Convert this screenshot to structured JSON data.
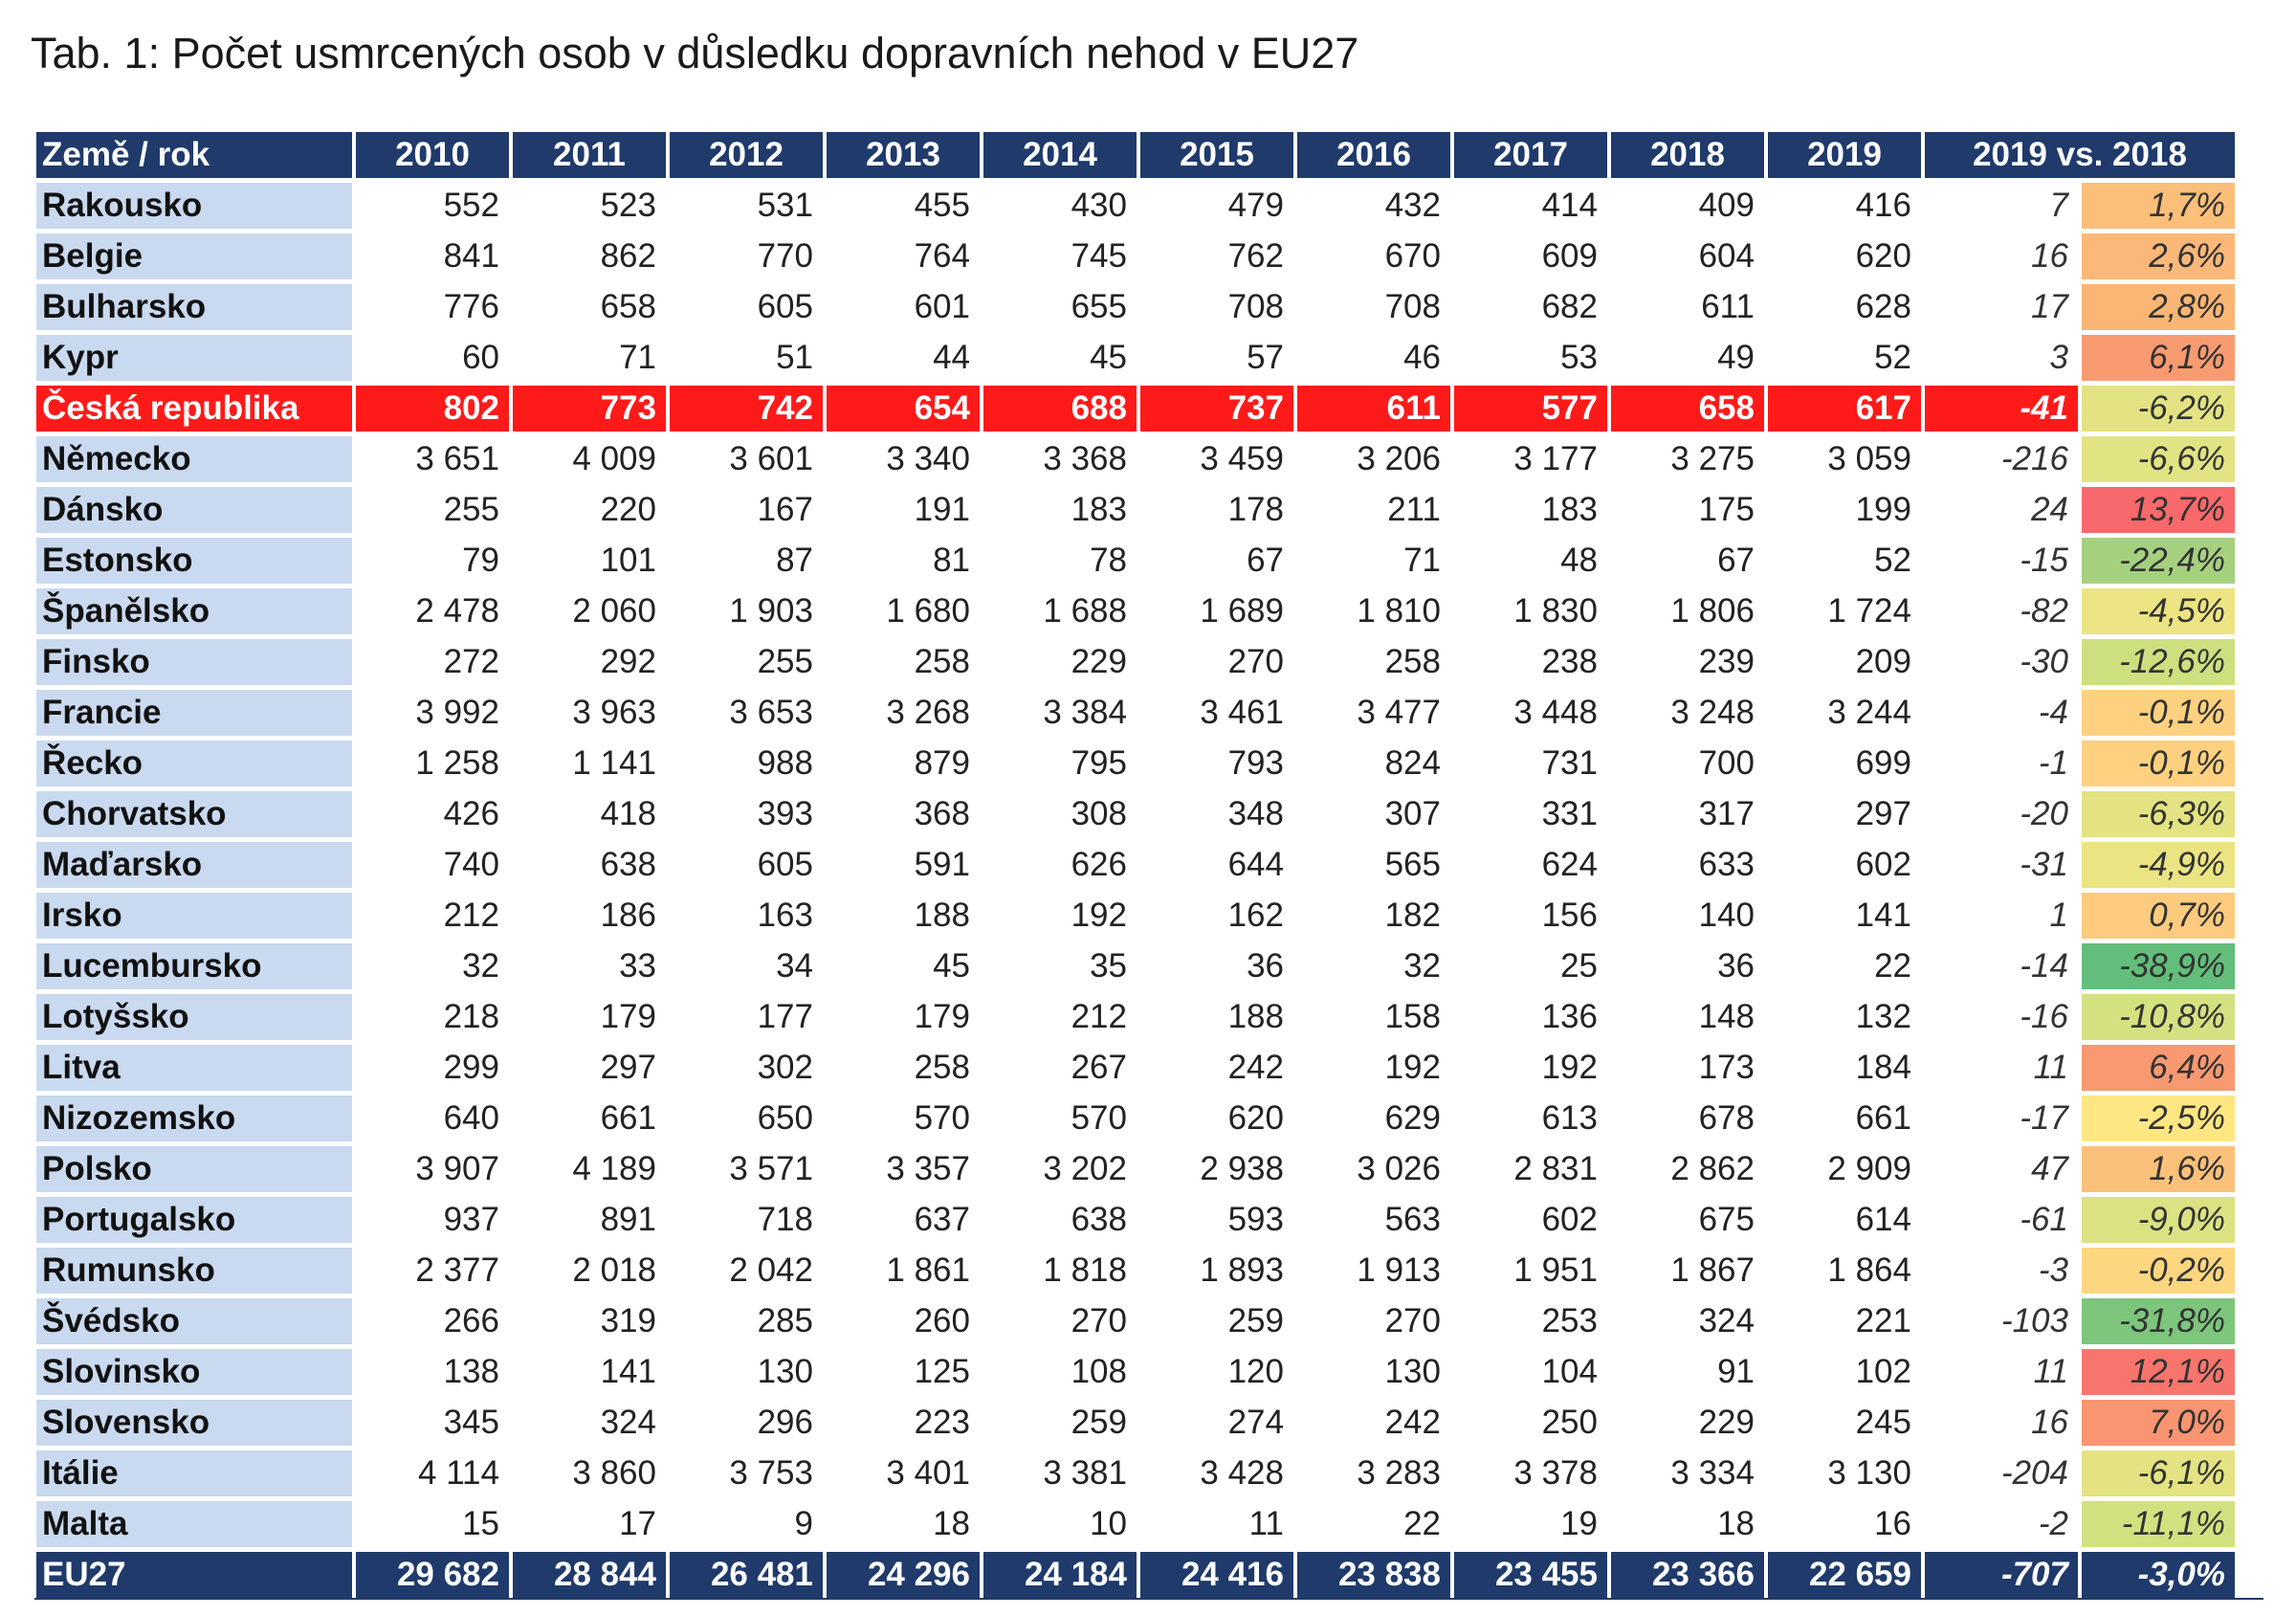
{
  "title": "Tab. 1: Počet usmrcených osob v důsledku dopravních nehod v EU27",
  "table": {
    "corner": "Země / rok",
    "years": [
      "2010",
      "2011",
      "2012",
      "2013",
      "2014",
      "2015",
      "2016",
      "2017",
      "2018",
      "2019"
    ],
    "diff_header": "2019 vs. 2018",
    "rows": [
      {
        "country": "Rakousko",
        "values": [
          "552",
          "523",
          "531",
          "455",
          "430",
          "479",
          "432",
          "414",
          "409",
          "416"
        ],
        "diff": "7",
        "pct": "1,7%",
        "color": "#fbbf7a"
      },
      {
        "country": "Belgie",
        "values": [
          "841",
          "862",
          "770",
          "764",
          "745",
          "762",
          "670",
          "609",
          "604",
          "620"
        ],
        "diff": "16",
        "pct": "2,6%",
        "color": "#fbb878"
      },
      {
        "country": "Bulharsko",
        "values": [
          "776",
          "658",
          "605",
          "601",
          "655",
          "708",
          "708",
          "682",
          "611",
          "628"
        ],
        "diff": "17",
        "pct": "2,8%",
        "color": "#fbb676"
      },
      {
        "country": "Kypr",
        "values": [
          "60",
          "71",
          "51",
          "44",
          "45",
          "57",
          "46",
          "53",
          "49",
          "52"
        ],
        "diff": "3",
        "pct": "6,1%",
        "color": "#f99b71"
      },
      {
        "country": "Česká republika",
        "values": [
          "802",
          "773",
          "742",
          "654",
          "688",
          "737",
          "611",
          "577",
          "658",
          "617"
        ],
        "diff": "-41",
        "pct": "-6,2%",
        "color": "#e3e383",
        "highlight": true
      },
      {
        "country": "Německo",
        "values": [
          "3 651",
          "4 009",
          "3 601",
          "3 340",
          "3 368",
          "3 459",
          "3 206",
          "3 177",
          "3 275",
          "3 059"
        ],
        "diff": "-216",
        "pct": "-6,6%",
        "color": "#e2e383"
      },
      {
        "country": "Dánsko",
        "values": [
          "255",
          "220",
          "167",
          "191",
          "183",
          "178",
          "211",
          "183",
          "175",
          "199"
        ],
        "diff": "24",
        "pct": "13,7%",
        "color": "#f8696b"
      },
      {
        "country": "Estonsko",
        "values": [
          "79",
          "101",
          "87",
          "81",
          "78",
          "67",
          "71",
          "48",
          "67",
          "52"
        ],
        "diff": "-15",
        "pct": "-22,4%",
        "color": "#a5d17f"
      },
      {
        "country": "Španělsko",
        "values": [
          "2 478",
          "2 060",
          "1 903",
          "1 680",
          "1 688",
          "1 689",
          "1 810",
          "1 830",
          "1 806",
          "1 724"
        ],
        "diff": "-82",
        "pct": "-4,5%",
        "color": "#ece482"
      },
      {
        "country": "Finsko",
        "values": [
          "272",
          "292",
          "255",
          "258",
          "229",
          "270",
          "258",
          "238",
          "239",
          "209"
        ],
        "diff": "-30",
        "pct": "-12,6%",
        "color": "#cde07f"
      },
      {
        "country": "Francie",
        "values": [
          "3 992",
          "3 963",
          "3 653",
          "3 268",
          "3 384",
          "3 461",
          "3 477",
          "3 448",
          "3 248",
          "3 244"
        ],
        "diff": "-4",
        "pct": "-0,1%",
        "color": "#fdd17f"
      },
      {
        "country": "Řecko",
        "values": [
          "1 258",
          "1 141",
          "988",
          "879",
          "795",
          "793",
          "824",
          "731",
          "700",
          "699"
        ],
        "diff": "-1",
        "pct": "-0,1%",
        "color": "#fdd17f"
      },
      {
        "country": "Chorvatsko",
        "values": [
          "426",
          "418",
          "393",
          "368",
          "308",
          "348",
          "307",
          "331",
          "317",
          "297"
        ],
        "diff": "-20",
        "pct": "-6,3%",
        "color": "#e3e383"
      },
      {
        "country": "Maďarsko",
        "values": [
          "740",
          "638",
          "605",
          "591",
          "626",
          "644",
          "565",
          "624",
          "633",
          "602"
        ],
        "diff": "-31",
        "pct": "-4,9%",
        "color": "#eae482"
      },
      {
        "country": "Irsko",
        "values": [
          "212",
          "186",
          "163",
          "188",
          "192",
          "162",
          "182",
          "156",
          "140",
          "141"
        ],
        "diff": "1",
        "pct": "0,7%",
        "color": "#fccb7d"
      },
      {
        "country": "Lucembursko",
        "values": [
          "32",
          "33",
          "34",
          "45",
          "35",
          "36",
          "32",
          "25",
          "36",
          "22"
        ],
        "diff": "-14",
        "pct": "-38,9%",
        "color": "#63be7b"
      },
      {
        "country": "Lotyšsko",
        "values": [
          "218",
          "179",
          "177",
          "179",
          "212",
          "188",
          "158",
          "136",
          "148",
          "132"
        ],
        "diff": "-16",
        "pct": "-10,8%",
        "color": "#d5e180"
      },
      {
        "country": "Litva",
        "values": [
          "299",
          "297",
          "302",
          "258",
          "267",
          "242",
          "192",
          "192",
          "173",
          "184"
        ],
        "diff": "11",
        "pct": "6,4%",
        "color": "#f99971"
      },
      {
        "country": "Nizozemsko",
        "values": [
          "640",
          "661",
          "650",
          "570",
          "570",
          "620",
          "629",
          "613",
          "678",
          "661"
        ],
        "diff": "-17",
        "pct": "-2,5%",
        "color": "#fee782"
      },
      {
        "country": "Polsko",
        "values": [
          "3 907",
          "4 189",
          "3 571",
          "3 357",
          "3 202",
          "2 938",
          "3 026",
          "2 831",
          "2 862",
          "2 909"
        ],
        "diff": "47",
        "pct": "1,6%",
        "color": "#fbc17a"
      },
      {
        "country": "Portugalsko",
        "values": [
          "937",
          "891",
          "718",
          "637",
          "638",
          "593",
          "563",
          "602",
          "675",
          "614"
        ],
        "diff": "-61",
        "pct": "-9,0%",
        "color": "#dce281"
      },
      {
        "country": "Rumunsko",
        "values": [
          "2 377",
          "2 018",
          "2 042",
          "1 861",
          "1 818",
          "1 893",
          "1 913",
          "1 951",
          "1 867",
          "1 864"
        ],
        "diff": "-3",
        "pct": "-0,2%",
        "color": "#fdd680"
      },
      {
        "country": "Švédsko",
        "values": [
          "266",
          "319",
          "285",
          "260",
          "270",
          "259",
          "270",
          "253",
          "324",
          "221"
        ],
        "diff": "-103",
        "pct": "-31,8%",
        "color": "#7dc67c"
      },
      {
        "country": "Slovinsko",
        "values": [
          "138",
          "141",
          "130",
          "125",
          "108",
          "120",
          "130",
          "104",
          "91",
          "102"
        ],
        "diff": "11",
        "pct": "12,1%",
        "color": "#f8756d"
      },
      {
        "country": "Slovensko",
        "values": [
          "345",
          "324",
          "296",
          "223",
          "259",
          "274",
          "242",
          "250",
          "229",
          "245"
        ],
        "diff": "16",
        "pct": "7,0%",
        "color": "#f99571"
      },
      {
        "country": "Itálie",
        "values": [
          "4 114",
          "3 860",
          "3 753",
          "3 401",
          "3 381",
          "3 428",
          "3 283",
          "3 378",
          "3 334",
          "3 130"
        ],
        "diff": "-204",
        "pct": "-6,1%",
        "color": "#e3e383"
      },
      {
        "country": "Malta",
        "values": [
          "15",
          "17",
          "9",
          "18",
          "10",
          "11",
          "22",
          "19",
          "18",
          "16"
        ],
        "diff": "-2",
        "pct": "-11,1%",
        "color": "#d3e080"
      }
    ],
    "total": {
      "country": "EU27",
      "values": [
        "29 682",
        "28 844",
        "26 481",
        "24 296",
        "24 184",
        "24 416",
        "23 838",
        "23 455",
        "23 366",
        "22 659"
      ],
      "diff": "-707",
      "pct": "-3,0%"
    }
  }
}
